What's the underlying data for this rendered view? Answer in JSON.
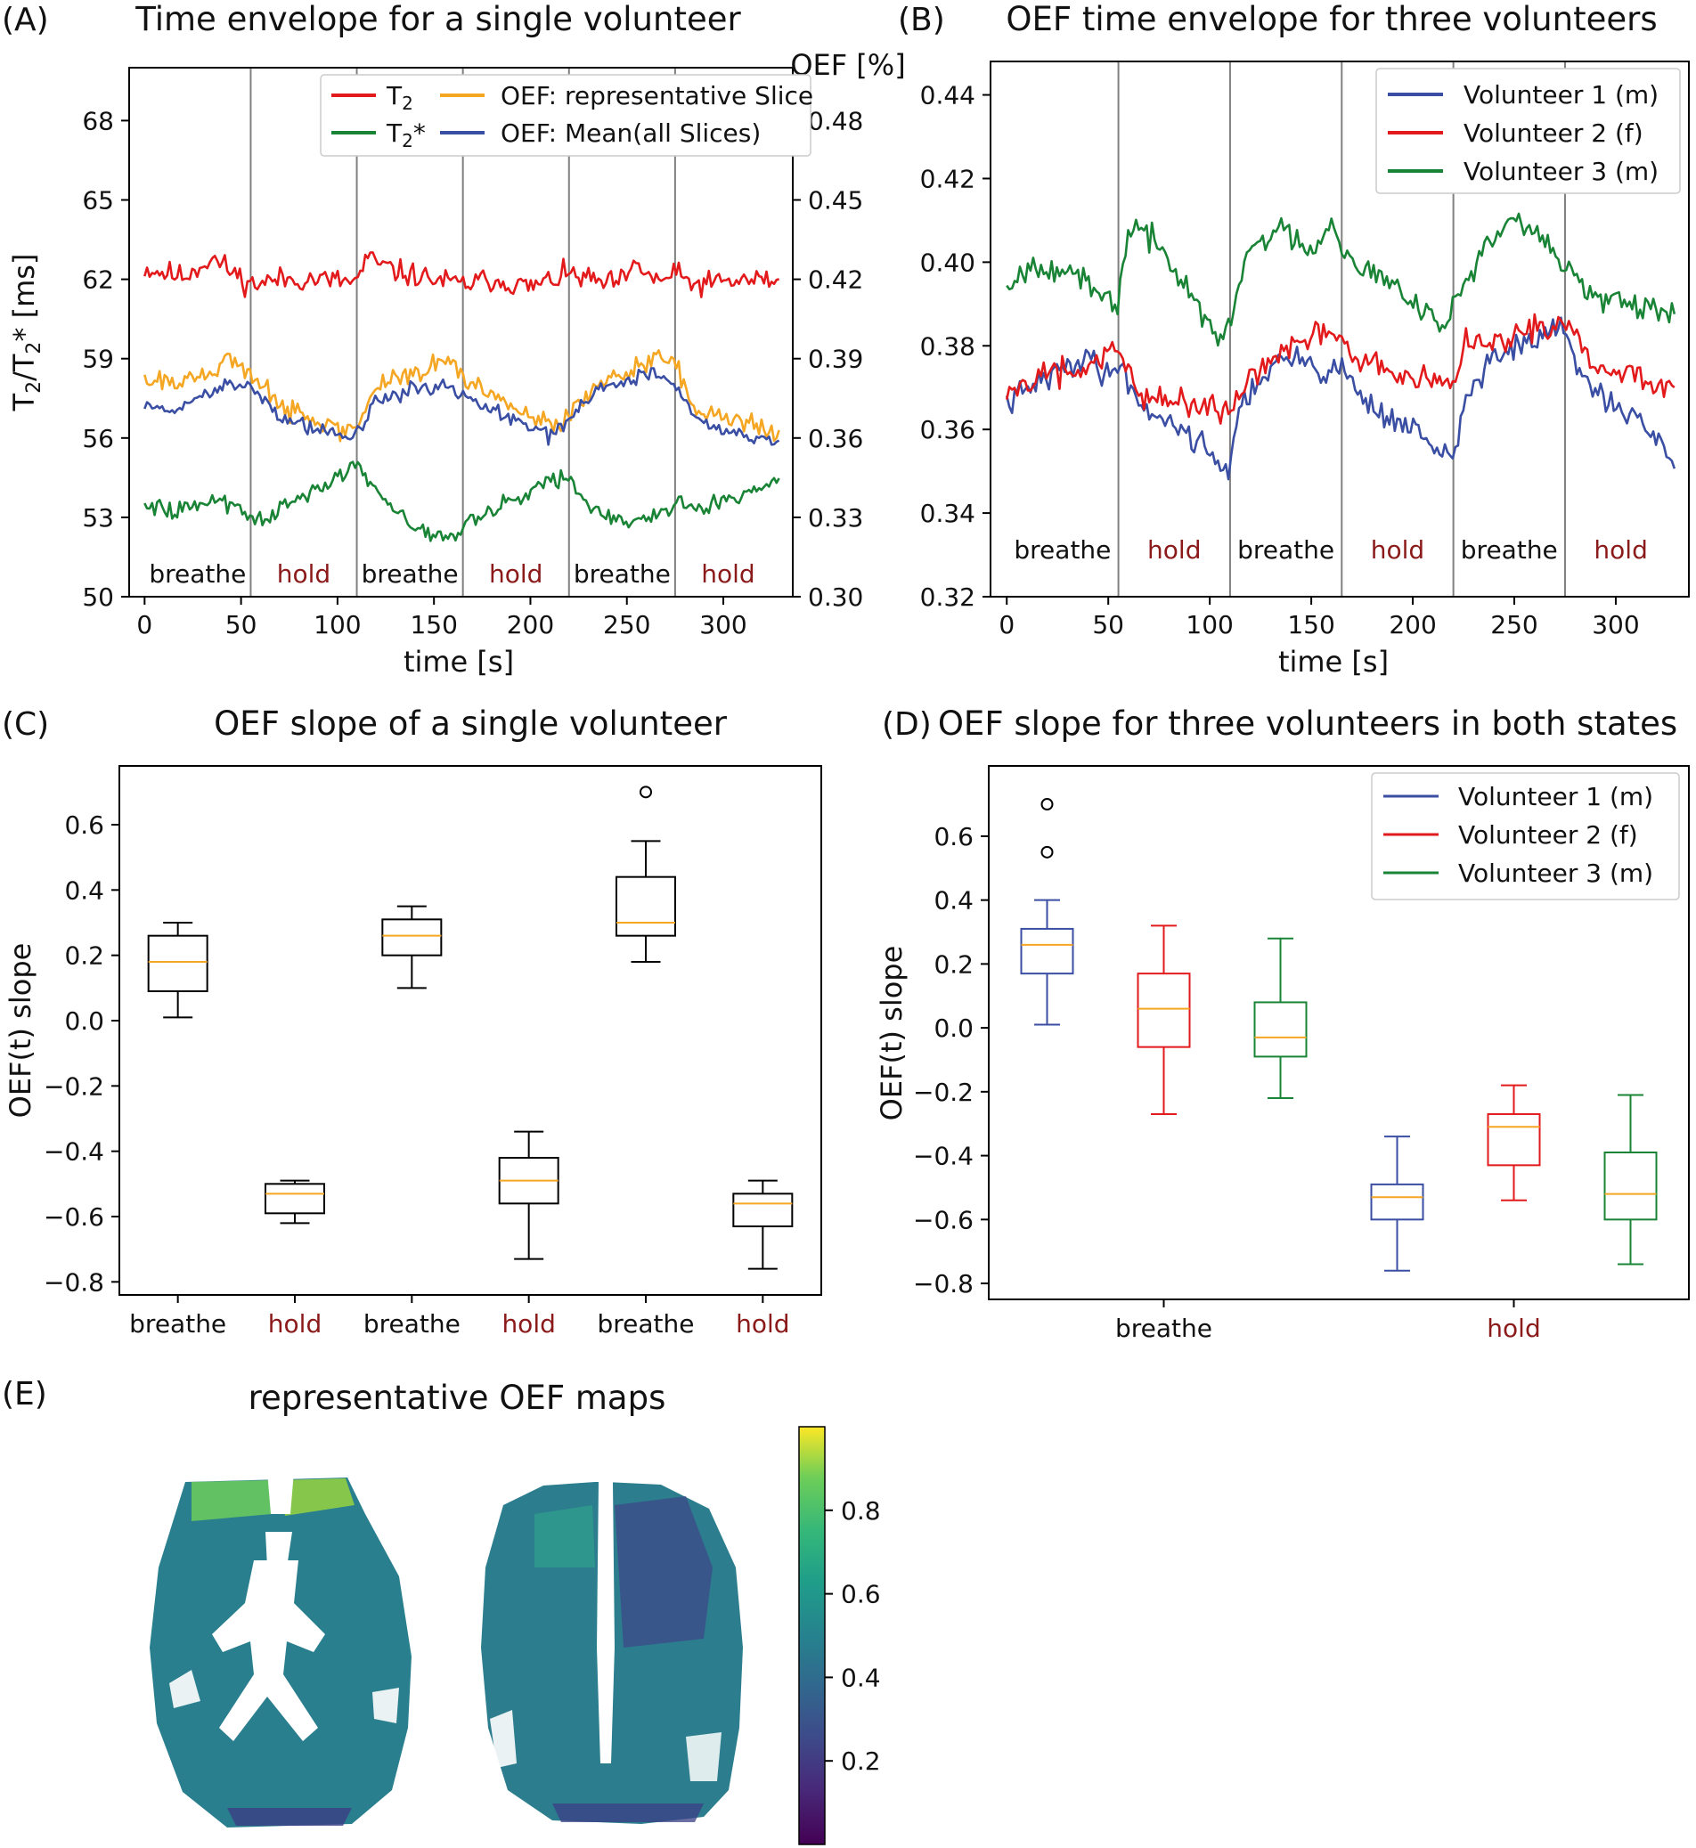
{
  "chart_data": [
    {
      "panel": "(A)",
      "type": "line",
      "title": "Time envelope for a single volunteer",
      "xlabel": "time [s]",
      "ylabel": "T2/T2* [ms]",
      "ylabel_right": "OEF [%]",
      "xlim": [
        -8,
        336
      ],
      "ylim": [
        50,
        70
      ],
      "ylim_right": [
        0.3,
        0.5
      ],
      "x_ticks": [
        0,
        50,
        100,
        150,
        200,
        250,
        300
      ],
      "y_ticks": [
        50,
        53,
        56,
        59,
        62,
        65,
        68
      ],
      "y_ticks_right": [
        0.3,
        0.33,
        0.36,
        0.39,
        0.42,
        0.45,
        0.48
      ],
      "phase_boundaries": [
        55,
        110,
        165,
        220,
        275
      ],
      "phases": [
        "breathe",
        "hold",
        "breathe",
        "hold",
        "breathe",
        "hold"
      ],
      "legend": {
        "position": "top-right",
        "columns": 2
      },
      "series": [
        {
          "name": "T2",
          "axis": "left",
          "color": "#e31a1c",
          "x": [
            0,
            20,
            35,
            45,
            55,
            70,
            90,
            110,
            115,
            130,
            150,
            165,
            180,
            200,
            220,
            240,
            250,
            255,
            265,
            275,
            285,
            300,
            320,
            330
          ],
          "y": [
            62.4,
            62.1,
            62.8,
            62.3,
            61.8,
            62.0,
            62.0,
            61.9,
            62.8,
            62.3,
            62.0,
            61.8,
            62.0,
            61.7,
            62.2,
            61.8,
            62.0,
            62.6,
            61.9,
            62.2,
            61.8,
            61.9,
            62.0,
            61.9
          ]
        },
        {
          "name": "T2*",
          "axis": "left",
          "color": "#1a8436",
          "x": [
            0,
            15,
            30,
            45,
            55,
            60,
            80,
            100,
            110,
            115,
            130,
            150,
            160,
            170,
            190,
            210,
            220,
            230,
            250,
            270,
            275,
            290,
            310,
            330
          ],
          "y": [
            53.6,
            53.2,
            53.6,
            53.5,
            53.1,
            52.8,
            53.8,
            54.5,
            55.0,
            54.4,
            53.1,
            52.4,
            52.3,
            52.9,
            53.6,
            54.3,
            54.5,
            53.4,
            52.8,
            53.2,
            53.5,
            53.4,
            53.9,
            54.2
          ]
        },
        {
          "name": "OEF: representative Slice",
          "axis": "right",
          "color": "#f5a623",
          "x": [
            0,
            15,
            30,
            45,
            55,
            70,
            90,
            105,
            110,
            120,
            140,
            155,
            170,
            190,
            210,
            220,
            235,
            250,
            265,
            275,
            285,
            300,
            315,
            330
          ],
          "y": [
            0.383,
            0.38,
            0.383,
            0.389,
            0.384,
            0.373,
            0.367,
            0.362,
            0.364,
            0.38,
            0.385,
            0.389,
            0.38,
            0.372,
            0.364,
            0.367,
            0.381,
            0.384,
            0.39,
            0.39,
            0.37,
            0.368,
            0.366,
            0.36
          ]
        },
        {
          "name": "OEF: Mean(all Slices)",
          "axis": "right",
          "color": "#3a4ea3",
          "x": [
            0,
            15,
            30,
            45,
            55,
            70,
            90,
            105,
            110,
            120,
            140,
            155,
            170,
            190,
            210,
            220,
            235,
            250,
            265,
            275,
            285,
            300,
            315,
            330
          ],
          "y": [
            0.372,
            0.37,
            0.376,
            0.381,
            0.38,
            0.368,
            0.363,
            0.361,
            0.361,
            0.374,
            0.378,
            0.38,
            0.374,
            0.367,
            0.361,
            0.367,
            0.379,
            0.381,
            0.385,
            0.38,
            0.368,
            0.364,
            0.36,
            0.358
          ]
        }
      ]
    },
    {
      "panel": "(B)",
      "type": "line",
      "title": "OEF time envelope for three volunteers",
      "xlabel": "time [s]",
      "xlim": [
        -8,
        336
      ],
      "ylim": [
        0.32,
        0.448
      ],
      "x_ticks": [
        0,
        50,
        100,
        150,
        200,
        250,
        300
      ],
      "y_ticks": [
        0.32,
        0.34,
        0.36,
        0.38,
        0.4,
        0.42,
        0.44
      ],
      "phase_boundaries": [
        55,
        110,
        165,
        220,
        275
      ],
      "phases": [
        "breathe",
        "hold",
        "breathe",
        "hold",
        "breathe",
        "hold"
      ],
      "legend": {
        "position": "top-right"
      },
      "series": [
        {
          "name": "Volunteer 1 (m)",
          "color": "#3a4ea3",
          "x": [
            0,
            15,
            30,
            40,
            50,
            55,
            65,
            80,
            95,
            110,
            115,
            130,
            145,
            160,
            165,
            180,
            200,
            220,
            225,
            240,
            255,
            270,
            275,
            290,
            310,
            330
          ],
          "y": [
            0.366,
            0.371,
            0.375,
            0.378,
            0.372,
            0.377,
            0.366,
            0.362,
            0.357,
            0.35,
            0.366,
            0.375,
            0.377,
            0.373,
            0.375,
            0.365,
            0.36,
            0.352,
            0.366,
            0.378,
            0.38,
            0.384,
            0.382,
            0.368,
            0.362,
            0.353
          ]
        },
        {
          "name": "Volunteer 2 (f)",
          "color": "#e31a1c",
          "x": [
            0,
            15,
            30,
            45,
            55,
            65,
            80,
            100,
            110,
            120,
            135,
            150,
            160,
            165,
            180,
            200,
            220,
            225,
            245,
            265,
            275,
            290,
            310,
            330
          ],
          "y": [
            0.368,
            0.373,
            0.374,
            0.376,
            0.38,
            0.368,
            0.367,
            0.365,
            0.364,
            0.373,
            0.378,
            0.382,
            0.384,
            0.379,
            0.375,
            0.372,
            0.37,
            0.38,
            0.381,
            0.384,
            0.386,
            0.375,
            0.372,
            0.37
          ]
        },
        {
          "name": "Volunteer 3 (m)",
          "color": "#1a8436",
          "x": [
            0,
            15,
            30,
            45,
            55,
            60,
            75,
            90,
            105,
            110,
            120,
            135,
            150,
            160,
            165,
            180,
            200,
            215,
            220,
            235,
            250,
            265,
            275,
            285,
            300,
            315,
            330
          ],
          "y": [
            0.395,
            0.4,
            0.398,
            0.392,
            0.39,
            0.409,
            0.404,
            0.393,
            0.38,
            0.386,
            0.404,
            0.408,
            0.403,
            0.41,
            0.404,
            0.397,
            0.392,
            0.384,
            0.39,
            0.403,
            0.41,
            0.405,
            0.4,
            0.393,
            0.39,
            0.388,
            0.388
          ]
        }
      ]
    },
    {
      "panel": "(C)",
      "type": "box",
      "title": "OEF slope of a single volunteer",
      "ylabel": "OEF(t) slope",
      "ylim": [
        -0.84,
        0.78
      ],
      "y_ticks": [
        -0.8,
        -0.6,
        -0.4,
        -0.2,
        0.0,
        0.2,
        0.4,
        0.6
      ],
      "categories": [
        "breathe",
        "hold",
        "breathe",
        "hold",
        "breathe",
        "hold"
      ],
      "boxes": [
        {
          "whislo": 0.01,
          "q1": 0.09,
          "med": 0.18,
          "q3": 0.26,
          "whishi": 0.3,
          "fliers": []
        },
        {
          "whislo": -0.62,
          "q1": -0.59,
          "med": -0.53,
          "q3": -0.5,
          "whishi": -0.49,
          "fliers": []
        },
        {
          "whislo": 0.1,
          "q1": 0.2,
          "med": 0.26,
          "q3": 0.31,
          "whishi": 0.35,
          "fliers": []
        },
        {
          "whislo": -0.73,
          "q1": -0.56,
          "med": -0.49,
          "q3": -0.42,
          "whishi": -0.34,
          "fliers": []
        },
        {
          "whislo": 0.18,
          "q1": 0.26,
          "med": 0.3,
          "q3": 0.44,
          "whishi": 0.55,
          "fliers": [
            0.7
          ]
        },
        {
          "whislo": -0.76,
          "q1": -0.63,
          "med": -0.56,
          "q3": -0.53,
          "whishi": -0.49,
          "fliers": []
        }
      ]
    },
    {
      "panel": "(D)",
      "type": "box",
      "title": "OEF slope for three volunteers in both states",
      "ylabel": "OEF(t) slope",
      "ylim": [
        -0.85,
        0.82
      ],
      "y_ticks": [
        -0.8,
        -0.6,
        -0.4,
        -0.2,
        0.0,
        0.2,
        0.4,
        0.6
      ],
      "categories": [
        "breathe",
        "hold"
      ],
      "legend": {
        "position": "top-right"
      },
      "series": [
        {
          "name": "Volunteer 1 (m)",
          "color": "#3a4ea3",
          "boxes": [
            {
              "whislo": 0.01,
              "q1": 0.17,
              "med": 0.26,
              "q3": 0.31,
              "whishi": 0.4,
              "fliers": [
                0.55,
                0.7
              ]
            },
            {
              "whislo": -0.76,
              "q1": -0.6,
              "med": -0.53,
              "q3": -0.49,
              "whishi": -0.34,
              "fliers": []
            }
          ]
        },
        {
          "name": "Volunteer 2 (f)",
          "color": "#e31a1c",
          "boxes": [
            {
              "whislo": -0.27,
              "q1": -0.06,
              "med": 0.06,
              "q3": 0.17,
              "whishi": 0.32,
              "fliers": []
            },
            {
              "whislo": -0.54,
              "q1": -0.43,
              "med": -0.31,
              "q3": -0.27,
              "whishi": -0.18,
              "fliers": []
            }
          ]
        },
        {
          "name": "Volunteer 3 (m)",
          "color": "#1a8436",
          "boxes": [
            {
              "whislo": -0.22,
              "q1": -0.09,
              "med": -0.03,
              "q3": 0.08,
              "whishi": 0.28,
              "fliers": []
            },
            {
              "whislo": -0.74,
              "q1": -0.6,
              "med": -0.52,
              "q3": -0.39,
              "whishi": -0.21,
              "fliers": []
            }
          ]
        }
      ]
    },
    {
      "panel": "(E)",
      "type": "heatmap",
      "title": "representative OEF maps",
      "colormap": "viridis",
      "colorbar_range": [
        0,
        1
      ],
      "colorbar_ticks": [
        0.2,
        0.4,
        0.6,
        0.8
      ]
    }
  ]
}
